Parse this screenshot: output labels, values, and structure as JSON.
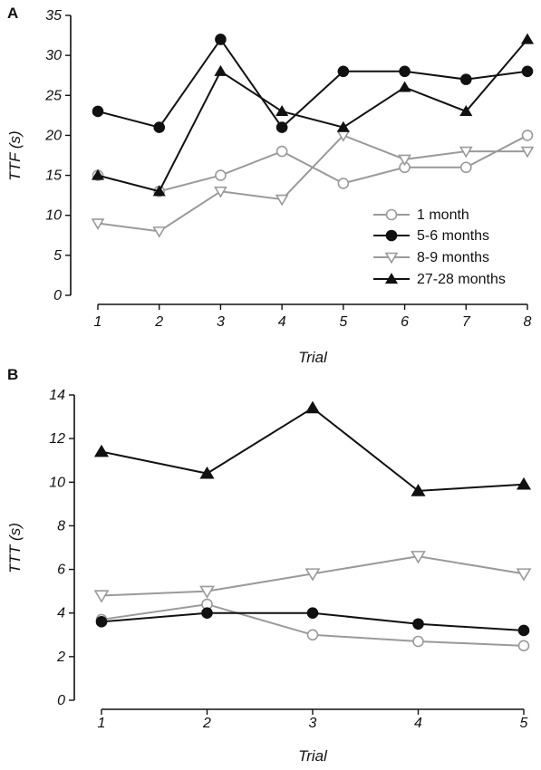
{
  "chart_data": [
    {
      "panel_label": "A",
      "type": "line",
      "xlabel": "Trial",
      "ylabel": "TTF (s)",
      "x": [
        1,
        2,
        3,
        4,
        5,
        6,
        7,
        8
      ],
      "xticks": [
        "1",
        "2",
        "3",
        "4",
        "5",
        "6",
        "7",
        "8"
      ],
      "ylim": [
        0,
        35
      ],
      "yticks": [
        "0",
        "5",
        "10",
        "15",
        "20",
        "25",
        "30",
        "35"
      ],
      "legend_position": "right",
      "series": [
        {
          "name": "1 month",
          "marker": "circle-open",
          "color": "#9a9a9a",
          "values": [
            15,
            13,
            15,
            18,
            14,
            16,
            16,
            20
          ]
        },
        {
          "name": "5-6 months",
          "marker": "circle-filled",
          "color": "#111111",
          "values": [
            23,
            21,
            32,
            21,
            28,
            28,
            27,
            28
          ]
        },
        {
          "name": "8-9 months",
          "marker": "triangle-down-open",
          "color": "#9a9a9a",
          "values": [
            9,
            8,
            13,
            12,
            20,
            17,
            18,
            18
          ]
        },
        {
          "name": "27-28 months",
          "marker": "triangle-up-filled",
          "color": "#111111",
          "values": [
            15,
            13,
            28,
            23,
            21,
            26,
            23,
            32
          ]
        }
      ]
    },
    {
      "panel_label": "B",
      "type": "line",
      "xlabel": "Trial",
      "ylabel": "TTT (s)",
      "x": [
        1,
        2,
        3,
        4,
        5
      ],
      "xticks": [
        "1",
        "2",
        "3",
        "4",
        "5"
      ],
      "ylim": [
        0,
        14
      ],
      "yticks": [
        "0",
        "2",
        "4",
        "6",
        "8",
        "10",
        "12",
        "14"
      ],
      "series": [
        {
          "name": "1 month",
          "marker": "circle-open",
          "color": "#9a9a9a",
          "values": [
            3.7,
            4.4,
            3.0,
            2.7,
            2.5
          ]
        },
        {
          "name": "5-6 months",
          "marker": "circle-filled",
          "color": "#111111",
          "values": [
            3.6,
            4.0,
            4.0,
            3.5,
            3.2
          ]
        },
        {
          "name": "8-9 months",
          "marker": "triangle-down-open",
          "color": "#9a9a9a",
          "values": [
            4.8,
            5.0,
            5.8,
            6.6,
            5.8
          ]
        },
        {
          "name": "27-28 months",
          "marker": "triangle-up-filled",
          "color": "#111111",
          "values": [
            11.4,
            10.4,
            13.4,
            9.6,
            9.9
          ]
        }
      ]
    }
  ]
}
